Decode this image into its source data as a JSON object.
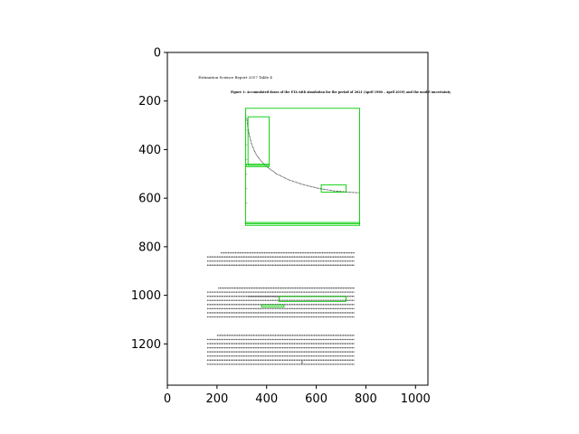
{
  "chart_data": {
    "type": "image",
    "xlim": [
      0,
      1050
    ],
    "ylim": [
      1370,
      0
    ],
    "y_inverted": true,
    "xticks": [
      0,
      200,
      400,
      600,
      800,
      1000
    ],
    "yticks": [
      0,
      200,
      400,
      600,
      800,
      1000,
      1200
    ],
    "xtick_labels": [
      "0",
      "200",
      "400",
      "600",
      "800",
      "1000"
    ],
    "ytick_labels": [
      "0",
      "200",
      "400",
      "600",
      "800",
      "1000",
      "1200"
    ],
    "grid": false,
    "image_content": {
      "document_header": "Estimation Science Report 2017 Table 4",
      "figure_caption": "Figure 1: Accumulated doses of the ETA with simulation for the period of 2021 (April 1980 – April 2019) and the model uncertainty",
      "curve": {
        "kind": "decaying",
        "points": [
          [
            320,
            270
          ],
          [
            323,
            300
          ],
          [
            330,
            340
          ],
          [
            340,
            380
          ],
          [
            355,
            415
          ],
          [
            375,
            445
          ],
          [
            400,
            470
          ],
          [
            440,
            500
          ],
          [
            490,
            525
          ],
          [
            550,
            545
          ],
          [
            610,
            560
          ],
          [
            670,
            570
          ],
          [
            730,
            575
          ],
          [
            775,
            578
          ]
        ]
      },
      "annotation_boxes_color": "#00cc00",
      "annotation_boxes_data": [
        {
          "x0": 315,
          "y0": 230,
          "x1": 775,
          "y1": 705
        },
        {
          "x0": 325,
          "y0": 265,
          "x1": 410,
          "y1": 465
        },
        {
          "x0": 318,
          "y0": 460,
          "x1": 410,
          "y1": 470
        },
        {
          "x0": 620,
          "y0": 545,
          "x1": 720,
          "y1": 575
        },
        {
          "x0": 315,
          "y0": 700,
          "x1": 775,
          "y1": 712
        },
        {
          "x0": 450,
          "y0": 1005,
          "x1": 720,
          "y1": 1025
        },
        {
          "x0": 380,
          "y0": 1040,
          "x1": 470,
          "y1": 1048
        }
      ]
    }
  }
}
